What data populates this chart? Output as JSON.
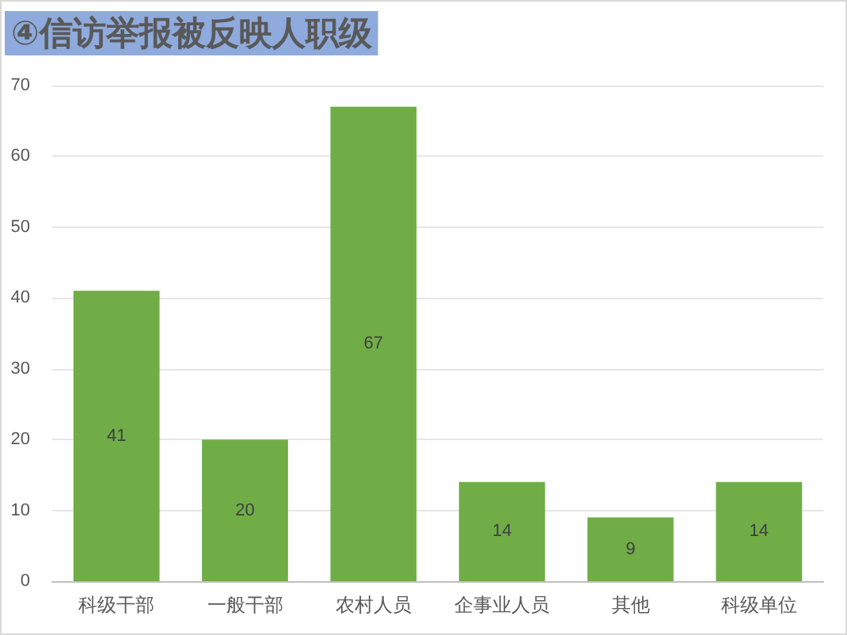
{
  "chart_data": {
    "type": "bar",
    "title": "④信访举报被反映人职级",
    "categories": [
      "科级干部",
      "一般干部",
      "农村人员",
      "企事业人员",
      "其他",
      "科级单位"
    ],
    "values": [
      41,
      20,
      67,
      14,
      9,
      14
    ],
    "color": "#70ad47",
    "ylim": [
      0,
      70
    ],
    "yticks": [
      0,
      10,
      20,
      30,
      40,
      50,
      60,
      70
    ],
    "grid": "y",
    "data_labels": true
  }
}
